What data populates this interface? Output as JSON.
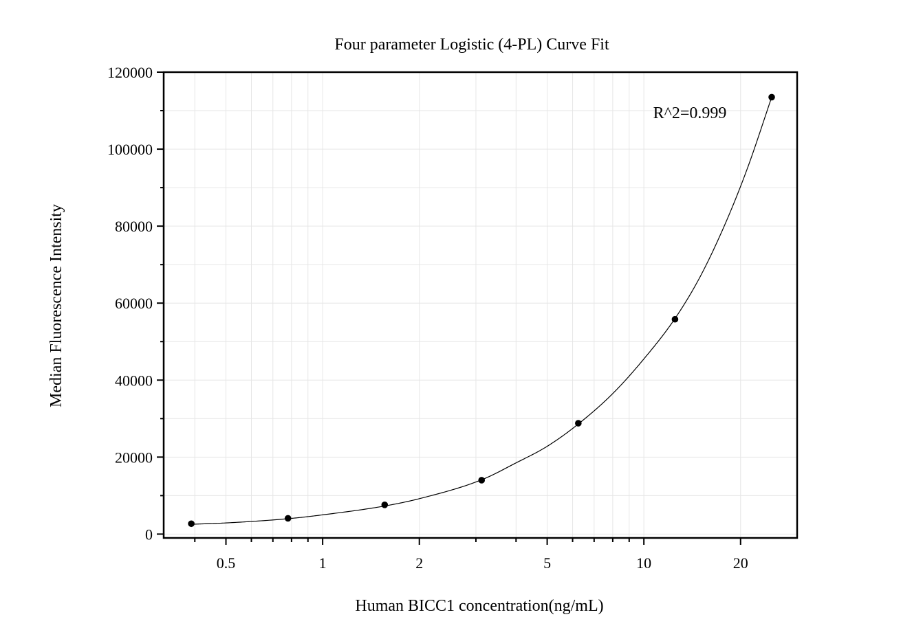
{
  "chart_data": {
    "type": "scatter",
    "title": "Four parameter Logistic (4-PL) Curve Fit",
    "xlabel": "Human BICC1 concentration(ng/mL)",
    "ylabel": "Median Fluorescence Intensity",
    "xscale": "log",
    "xlim": [
      0.32,
      30
    ],
    "ylim": [
      -1000,
      120000
    ],
    "x_ticks": [
      0.5,
      1,
      2,
      5,
      10,
      20
    ],
    "x_tick_labels": [
      "0.5",
      "1",
      "2",
      "5",
      "10",
      "20"
    ],
    "y_ticks": [
      0,
      20000,
      40000,
      60000,
      80000,
      100000,
      120000
    ],
    "y_tick_labels": [
      "0",
      "20000",
      "40000",
      "60000",
      "80000",
      "100000",
      "120000"
    ],
    "grid": true,
    "annotation": "R^2=0.999",
    "series": [
      {
        "points": [
          {
            "x": 0.39,
            "y": 2700
          },
          {
            "x": 0.78,
            "y": 4100
          },
          {
            "x": 1.56,
            "y": 7600
          },
          {
            "x": 3.125,
            "y": 14000
          },
          {
            "x": 6.25,
            "y": 28800
          },
          {
            "x": 12.5,
            "y": 55800
          },
          {
            "x": 25,
            "y": 113500
          }
        ],
        "color": "#000000"
      }
    ],
    "fit_curve": {
      "model": "4-PL",
      "color": "#000000",
      "points": [
        {
          "x": 0.39,
          "y": 2550
        },
        {
          "x": 0.5,
          "y": 2900
        },
        {
          "x": 0.78,
          "y": 4000
        },
        {
          "x": 1,
          "y": 5000
        },
        {
          "x": 1.56,
          "y": 7300
        },
        {
          "x": 2,
          "y": 9200
        },
        {
          "x": 3.125,
          "y": 14100
        },
        {
          "x": 4,
          "y": 18500
        },
        {
          "x": 5,
          "y": 22800
        },
        {
          "x": 6.25,
          "y": 28600
        },
        {
          "x": 8,
          "y": 36500
        },
        {
          "x": 10,
          "y": 45500
        },
        {
          "x": 12.5,
          "y": 56000
        },
        {
          "x": 15,
          "y": 67000
        },
        {
          "x": 18,
          "y": 81000
        },
        {
          "x": 21,
          "y": 95000
        },
        {
          "x": 25,
          "y": 113500
        }
      ]
    }
  }
}
